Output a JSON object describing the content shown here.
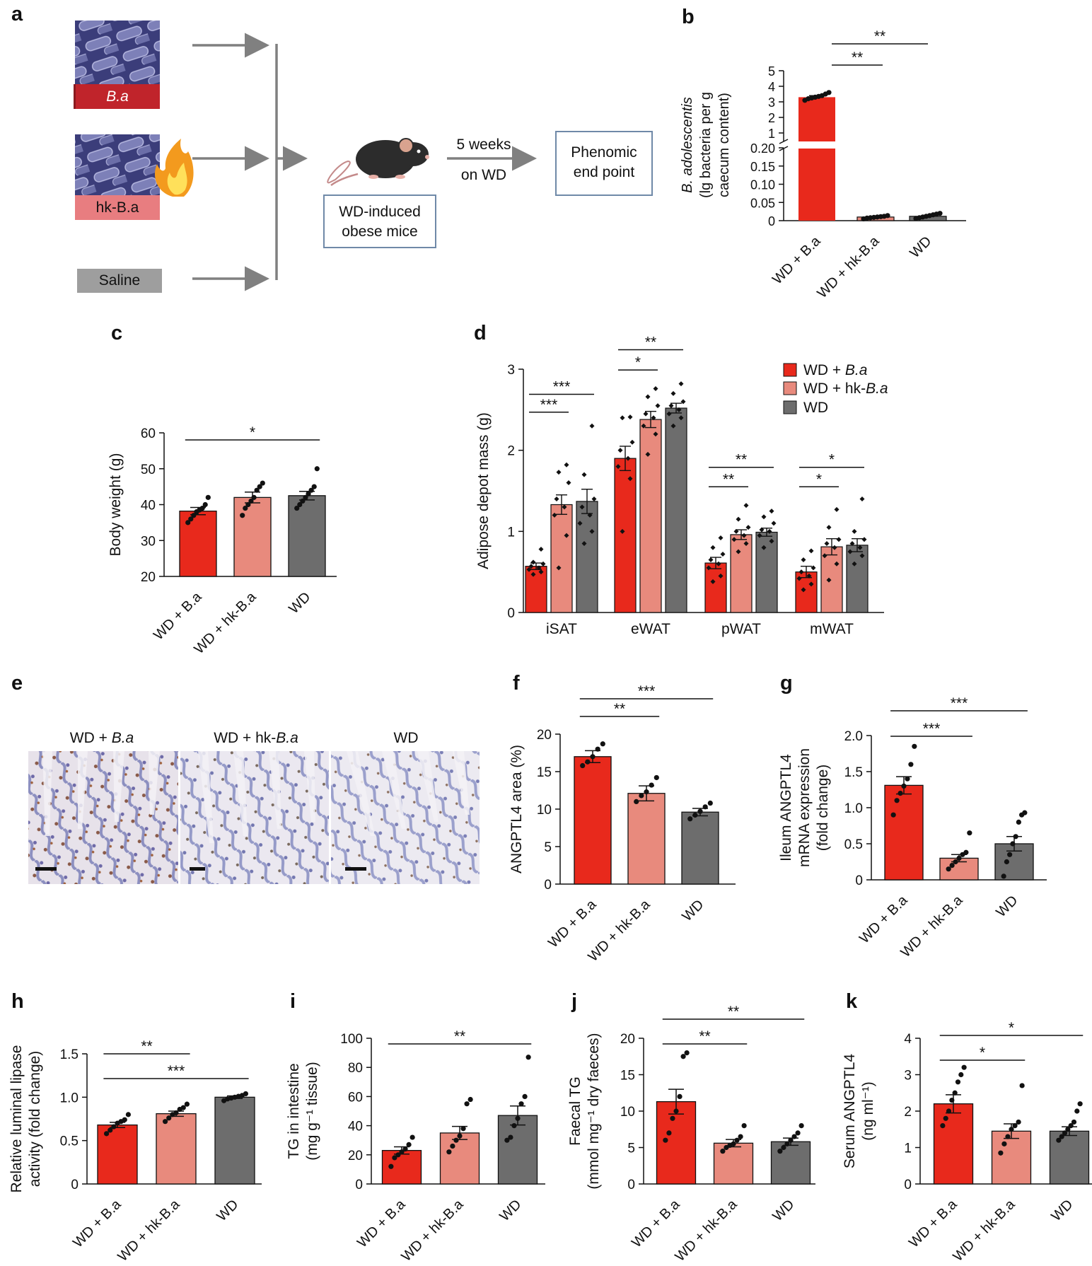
{
  "panels": {
    "a": "a",
    "b": "b",
    "c": "c",
    "d": "d",
    "e": "e",
    "f": "f",
    "g": "g",
    "h": "h",
    "i": "i",
    "j": "j",
    "k": "k"
  },
  "schematic": {
    "ba_label": "B.a",
    "hkba_label": "hk-B.a",
    "saline_label": "Saline",
    "mice_label_1": "WD-induced",
    "mice_label_2": "obese mice",
    "duration_1": "5 weeks",
    "duration_2": "on WD",
    "endpoint_1": "Phenomic",
    "endpoint_2": "end point",
    "icons": [
      "bacteria-micrograph-icon",
      "flame-icon",
      "mouse-icon",
      "arrow-icon"
    ]
  },
  "histology": {
    "labels": [
      "WD + B.a",
      "WD + hk-B.a",
      "WD"
    ]
  },
  "colors": {
    "ba": "#e8291c",
    "hk": "#e88a7d",
    "wd": "#6d6d6d",
    "saline": "#9e9e9e",
    "hkbox": "#e87d80",
    "babox": "#c0242b",
    "micro": "#3b3d7a"
  },
  "chart_data": [
    {
      "id": "b",
      "type": "bar",
      "categories": [
        "WD + B.a",
        "WD + hk-B.a",
        "WD"
      ],
      "values": [
        3.3,
        0.01,
        0.012
      ],
      "ylabel_lines": [
        "B. adolescentis",
        "(lg bacteria per g",
        "caecum content)"
      ],
      "yticks_upper": [
        "1",
        "2",
        "3",
        "4",
        "5"
      ],
      "yticks_lower": [
        "0",
        "0.05",
        "0.10",
        "0.15",
        "0.20"
      ],
      "axis_break": true,
      "points": [
        [
          3.1,
          3.2,
          3.25,
          3.3,
          3.35,
          3.4,
          3.5,
          3.6
        ],
        [
          0.005,
          0.007,
          0.008,
          0.009,
          0.01,
          0.011,
          0.012,
          0.014
        ],
        [
          0.006,
          0.008,
          0.01,
          0.012,
          0.014,
          0.016,
          0.018,
          0.02
        ]
      ],
      "sig": [
        {
          "from": 0,
          "to": 1,
          "label": "**"
        },
        {
          "from": 0,
          "to": 2,
          "label": "**"
        }
      ]
    },
    {
      "id": "c",
      "type": "bar",
      "categories": [
        "WD + B.a",
        "WD + hk-B.a",
        "WD"
      ],
      "values": [
        38.2,
        42,
        42.5
      ],
      "sem": [
        1,
        1.5,
        1.2
      ],
      "ylabel": "Body weight (g)",
      "ylim": [
        20,
        60
      ],
      "yticks": [
        "20",
        "30",
        "40",
        "50",
        "60"
      ],
      "points": [
        [
          35,
          36,
          37,
          38,
          38.5,
          39,
          40,
          42
        ],
        [
          37,
          39,
          40,
          41,
          42,
          44,
          45,
          46
        ],
        [
          39,
          40,
          41,
          42,
          43,
          44,
          45,
          50
        ]
      ],
      "sig": [
        {
          "from": 0,
          "to": 2,
          "label": "*"
        }
      ]
    },
    {
      "id": "d",
      "type": "bar",
      "groups": [
        "iSAT",
        "eWAT",
        "pWAT",
        "mWAT"
      ],
      "series": [
        {
          "name": "WD + B.a",
          "values": [
            0.57,
            1.9,
            0.61,
            0.5
          ],
          "sem": [
            0.04,
            0.15,
            0.07,
            0.07
          ]
        },
        {
          "name": "WD + hk-B.a",
          "values": [
            1.33,
            2.38,
            0.96,
            0.81
          ],
          "sem": [
            0.12,
            0.1,
            0.06,
            0.1
          ]
        },
        {
          "name": "WD",
          "values": [
            1.37,
            2.52,
            0.99,
            0.83
          ],
          "sem": [
            0.15,
            0.06,
            0.05,
            0.08
          ]
        }
      ],
      "ylabel": "Adipose depot mass (g)",
      "ylim": [
        0,
        3
      ],
      "yticks": [
        "0",
        "1",
        "2",
        "3"
      ],
      "legend_position": "top-right",
      "points": [
        [
          [
            0.47,
            0.5,
            0.53,
            0.55,
            0.57,
            0.6,
            0.62,
            0.78
          ],
          [
            0.55,
            0.95,
            1.2,
            1.3,
            1.4,
            1.6,
            1.73,
            1.82
          ],
          [
            0.85,
            1.0,
            1.1,
            1.2,
            1.3,
            1.4,
            1.7,
            2.3
          ]
        ],
        [
          [
            1.0,
            1.65,
            1.8,
            1.9,
            2.0,
            2.1,
            2.4,
            2.41
          ],
          [
            1.95,
            2.2,
            2.3,
            2.4,
            2.45,
            2.55,
            2.66,
            2.76
          ],
          [
            2.3,
            2.4,
            2.45,
            2.5,
            2.55,
            2.6,
            2.7,
            2.82
          ]
        ],
        [
          [
            0.38,
            0.45,
            0.55,
            0.6,
            0.65,
            0.72,
            0.8,
            0.92
          ],
          [
            0.75,
            0.85,
            0.9,
            0.95,
            1.0,
            1.05,
            1.15,
            1.32
          ],
          [
            0.8,
            0.88,
            0.95,
            1.0,
            1.02,
            1.1,
            1.18,
            1.25
          ]
        ],
        [
          [
            0.28,
            0.35,
            0.42,
            0.45,
            0.5,
            0.55,
            0.65,
            0.76
          ],
          [
            0.4,
            0.6,
            0.7,
            0.8,
            0.85,
            0.9,
            1.05,
            1.27
          ],
          [
            0.6,
            0.7,
            0.75,
            0.8,
            0.85,
            0.9,
            1.0,
            1.4
          ]
        ]
      ],
      "sig": [
        {
          "group": 0,
          "from": 0,
          "to": 1,
          "label": "***",
          "y": 2.47
        },
        {
          "group": 0,
          "from": 0,
          "to": 2,
          "label": "***",
          "y": 2.69
        },
        {
          "group": 1,
          "from": 0,
          "to": 1,
          "label": "*",
          "y": 2.99
        },
        {
          "group": 1,
          "from": 0,
          "to": 2,
          "label": "**",
          "y": 3.24
        },
        {
          "group": 2,
          "from": 0,
          "to": 1,
          "label": "**",
          "y": 1.55
        },
        {
          "group": 2,
          "from": 0,
          "to": 2,
          "label": "**",
          "y": 1.79
        },
        {
          "group": 3,
          "from": 0,
          "to": 1,
          "label": "*",
          "y": 1.55
        },
        {
          "group": 3,
          "from": 0,
          "to": 2,
          "label": "*",
          "y": 1.79
        }
      ]
    },
    {
      "id": "f",
      "type": "bar",
      "categories": [
        "WD + B.a",
        "WD + hk-B.a",
        "WD"
      ],
      "values": [
        17,
        12.1,
        9.6
      ],
      "sem": [
        0.8,
        1.0,
        0.5
      ],
      "ylabel": "ANGPTL4 area (%)",
      "ylim": [
        0,
        20
      ],
      "yticks": [
        "0",
        "5",
        "10",
        "15",
        "20"
      ],
      "points": [
        [
          15.8,
          16.3,
          17,
          18,
          18.7
        ],
        [
          11,
          11.8,
          12.3,
          13.2,
          14.2
        ],
        [
          8.7,
          9.2,
          9.7,
          10.3,
          10.8
        ]
      ],
      "sig": [
        {
          "from": 0,
          "to": 1,
          "label": "**"
        },
        {
          "from": 0,
          "to": 2,
          "label": "***"
        }
      ]
    },
    {
      "id": "g",
      "type": "bar",
      "categories": [
        "WD + B.a",
        "WD + hk-B.a",
        "WD"
      ],
      "values": [
        1.31,
        0.3,
        0.5
      ],
      "sem": [
        0.12,
        0.05,
        0.1
      ],
      "ylabel_lines": [
        "Ileum ANGPTL4",
        "mRNA expression",
        "(fold change)"
      ],
      "ylim": [
        0,
        2
      ],
      "yticks": [
        "0",
        "0.5",
        "1.0",
        "1.5",
        "2.0"
      ],
      "points": [
        [
          0.9,
          1.1,
          1.2,
          1.3,
          1.4,
          1.6,
          1.85
        ],
        [
          0.15,
          0.2,
          0.25,
          0.3,
          0.35,
          0.38,
          0.65
        ],
        [
          0.05,
          0.25,
          0.35,
          0.5,
          0.6,
          0.8,
          0.9,
          0.93
        ]
      ],
      "sig": [
        {
          "from": 0,
          "to": 1,
          "label": "***"
        },
        {
          "from": 0,
          "to": 2,
          "label": "***"
        }
      ]
    },
    {
      "id": "h",
      "type": "bar",
      "categories": [
        "WD + B.a",
        "WD + hk-B.a",
        "WD"
      ],
      "values": [
        0.68,
        0.81,
        1.0
      ],
      "sem": [
        0.03,
        0.03,
        0.015
      ],
      "ylabel_lines": [
        "Relative luminal lipase",
        "activity (fold change)"
      ],
      "ylim": [
        0,
        1.5
      ],
      "yticks": [
        "0",
        "0.5",
        "1.0",
        "1.5"
      ],
      "points": [
        [
          0.58,
          0.62,
          0.66,
          0.7,
          0.72,
          0.74,
          0.8
        ],
        [
          0.72,
          0.76,
          0.8,
          0.82,
          0.86,
          0.88,
          0.92
        ],
        [
          0.96,
          0.98,
          0.99,
          1.0,
          1.01,
          1.02,
          1.04
        ]
      ],
      "sig": [
        {
          "from": 0,
          "to": 1,
          "label": "**"
        },
        {
          "from": 0,
          "to": 2,
          "label": "***"
        }
      ]
    },
    {
      "id": "i",
      "type": "bar",
      "categories": [
        "WD + B.a",
        "WD + hk-B.a",
        "WD"
      ],
      "values": [
        23,
        35,
        47
      ],
      "sem": [
        2.5,
        4.5,
        6.5
      ],
      "ylabel_lines": [
        "TG in intestine",
        "(mg g⁻¹ tissue)"
      ],
      "ylim": [
        0,
        100
      ],
      "yticks": [
        "0",
        "20",
        "40",
        "60",
        "80",
        "100"
      ],
      "points": [
        [
          12,
          18,
          20,
          22,
          24,
          27,
          32
        ],
        [
          22,
          26,
          30,
          33,
          38,
          55,
          58
        ],
        [
          30,
          32,
          40,
          45,
          55,
          60,
          87
        ]
      ],
      "sig": [
        {
          "from": 0,
          "to": 2,
          "label": "**"
        }
      ]
    },
    {
      "id": "j",
      "type": "bar",
      "categories": [
        "WD + B.a",
        "WD + hk-B.a",
        "WD"
      ],
      "values": [
        11.3,
        5.6,
        5.8
      ],
      "sem": [
        1.7,
        0.5,
        0.5
      ],
      "ylabel_lines": [
        "Faecal TG",
        "(mmol mg⁻¹ dry faeces)"
      ],
      "ylim": [
        0,
        20
      ],
      "yticks": [
        "0",
        "5",
        "10",
        "15",
        "20"
      ],
      "points": [
        [
          6,
          7,
          9,
          10,
          12,
          17.5,
          18
        ],
        [
          4.5,
          5,
          5.3,
          5.5,
          6,
          6.5,
          8
        ],
        [
          4.5,
          5,
          5.5,
          6,
          6.5,
          7,
          8
        ]
      ],
      "sig": [
        {
          "from": 0,
          "to": 1,
          "label": "**"
        },
        {
          "from": 0,
          "to": 2,
          "label": "**"
        }
      ]
    },
    {
      "id": "k",
      "type": "bar",
      "categories": [
        "WD + B.a",
        "WD + hk-B.a",
        "WD"
      ],
      "values": [
        2.2,
        1.45,
        1.45
      ],
      "sem": [
        0.25,
        0.2,
        0.12
      ],
      "ylabel_lines": [
        "Serum ANGPTL4",
        "(ng ml⁻¹)"
      ],
      "ylim": [
        0,
        4
      ],
      "yticks": [
        "0",
        "1",
        "2",
        "3",
        "4"
      ],
      "points": [
        [
          1.6,
          1.8,
          2.0,
          2.3,
          2.5,
          2.8,
          3.0,
          3.2
        ],
        [
          0.85,
          1.1,
          1.3,
          1.5,
          1.6,
          1.7,
          2.7
        ],
        [
          1.2,
          1.3,
          1.4,
          1.5,
          1.6,
          1.7,
          2.0,
          2.2
        ]
      ],
      "sig": [
        {
          "from": 0,
          "to": 1,
          "label": "*"
        },
        {
          "from": 0,
          "to": 2,
          "label": "*"
        }
      ]
    }
  ]
}
